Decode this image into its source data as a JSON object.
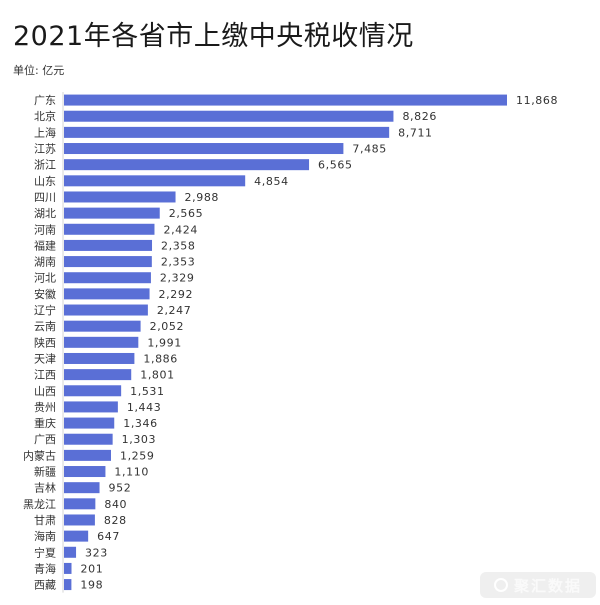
{
  "header": {
    "title": "2021年各省市上缴中央税收情况",
    "unit": "单位: 亿元"
  },
  "watermark": {
    "text": "聚汇数据",
    "icon": "logo-icon"
  },
  "colors": {
    "bar": "#5a6fd6",
    "bar_light": "#6f82de",
    "label": "#333333"
  },
  "chart_data": {
    "type": "bar",
    "orientation": "horizontal",
    "title": "2021年各省市上缴中央税收情况",
    "xlabel": "",
    "ylabel": "",
    "unit": "亿元",
    "xlim": [
      0,
      11868
    ],
    "grid": false,
    "categories": [
      "广东",
      "北京",
      "上海",
      "江苏",
      "浙江",
      "山东",
      "四川",
      "湖北",
      "河南",
      "福建",
      "湖南",
      "河北",
      "安徽",
      "辽宁",
      "云南",
      "陕西",
      "天津",
      "江西",
      "山西",
      "贵州",
      "重庆",
      "广西",
      "内蒙古",
      "新疆",
      "吉林",
      "黑龙江",
      "甘肃",
      "海南",
      "宁夏",
      "青海",
      "西藏"
    ],
    "values": [
      11868,
      8826,
      8711,
      7485,
      6565,
      4854,
      2988,
      2565,
      2424,
      2358,
      2353,
      2329,
      2292,
      2247,
      2052,
      1991,
      1886,
      1801,
      1531,
      1443,
      1346,
      1303,
      1259,
      1110,
      952,
      840,
      828,
      647,
      323,
      201,
      198
    ],
    "value_labels": [
      "11,868",
      "8,826",
      "8,711",
      "7,485",
      "6,565",
      "4,854",
      "2,988",
      "2,565",
      "2,424",
      "2,358",
      "2,353",
      "2,329",
      "2,292",
      "2,247",
      "2,052",
      "1,991",
      "1,886",
      "1,801",
      "1,531",
      "1,443",
      "1,346",
      "1,303",
      "1,259",
      "1,110",
      "952",
      "840",
      "828",
      "647",
      "323",
      "201",
      "198"
    ]
  }
}
